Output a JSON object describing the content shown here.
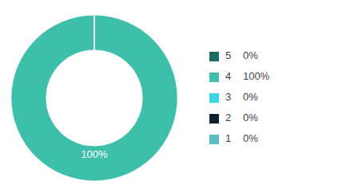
{
  "chart_data": {
    "type": "pie",
    "categories": [
      "5",
      "4",
      "3",
      "2",
      "1"
    ],
    "values": [
      0.0001,
      100,
      0.0001,
      0.0001,
      0.0001
    ],
    "value_labels": [
      "0%",
      "100%",
      "0%",
      "0%",
      "0%"
    ],
    "colors": [
      "#1a6b62",
      "#3dbfaa",
      "#3dd4e8",
      "#0d2233",
      "#5bbac4"
    ],
    "annotations": [
      {
        "text": "100%",
        "color": "#ffffff"
      }
    ],
    "legend": "right"
  }
}
